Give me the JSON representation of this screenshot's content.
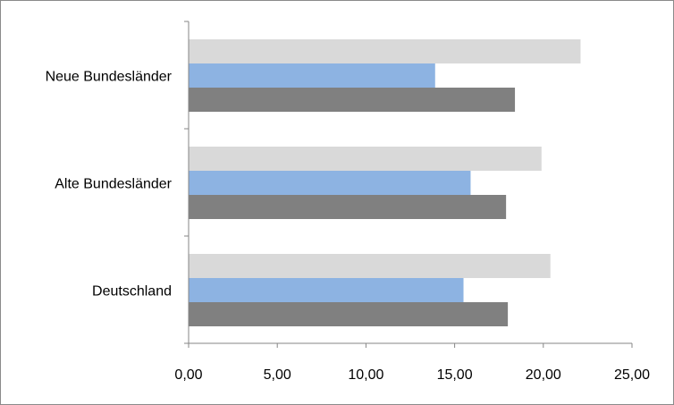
{
  "chart_data": {
    "type": "bar",
    "orientation": "horizontal",
    "categories": [
      "Neue Bundesländer",
      "Alte Bundesländer",
      "Deutschland"
    ],
    "series": [
      {
        "values": [
          22.1,
          19.9,
          20.4
        ],
        "color": "#d9d9d9"
      },
      {
        "values": [
          13.9,
          15.9,
          15.5
        ],
        "color": "#8db3e2"
      },
      {
        "values": [
          18.4,
          17.9,
          18.0
        ],
        "color": "#808080"
      }
    ],
    "xlim": [
      0,
      25
    ],
    "xticks": [
      "0,00",
      "5,00",
      "10,00",
      "15,00",
      "20,00",
      "25,00"
    ],
    "title": "",
    "xlabel": "",
    "ylabel": "",
    "grid": false,
    "legend": "none"
  }
}
